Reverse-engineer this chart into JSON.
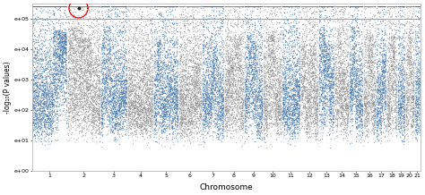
{
  "title": "",
  "xlabel": "Chromosome",
  "ylabel": "-log₁₀(P values)",
  "ylim": [
    0,
    5.5
  ],
  "ytick_positions": [
    0,
    1,
    2,
    3,
    4,
    5
  ],
  "ytick_labels": [
    "e+00",
    "e+01",
    "e+02",
    "e+03",
    "e+04",
    "e+05"
  ],
  "chromosomes": [
    1,
    2,
    3,
    4,
    5,
    6,
    7,
    8,
    9,
    10,
    11,
    12,
    13,
    14,
    15,
    16,
    17,
    18,
    19,
    20,
    21
  ],
  "significance_line": 5.0,
  "sig_line_color": "#9999cc",
  "color_blue": "#3a6ea5",
  "color_gray": "#888888",
  "seed": 42
}
